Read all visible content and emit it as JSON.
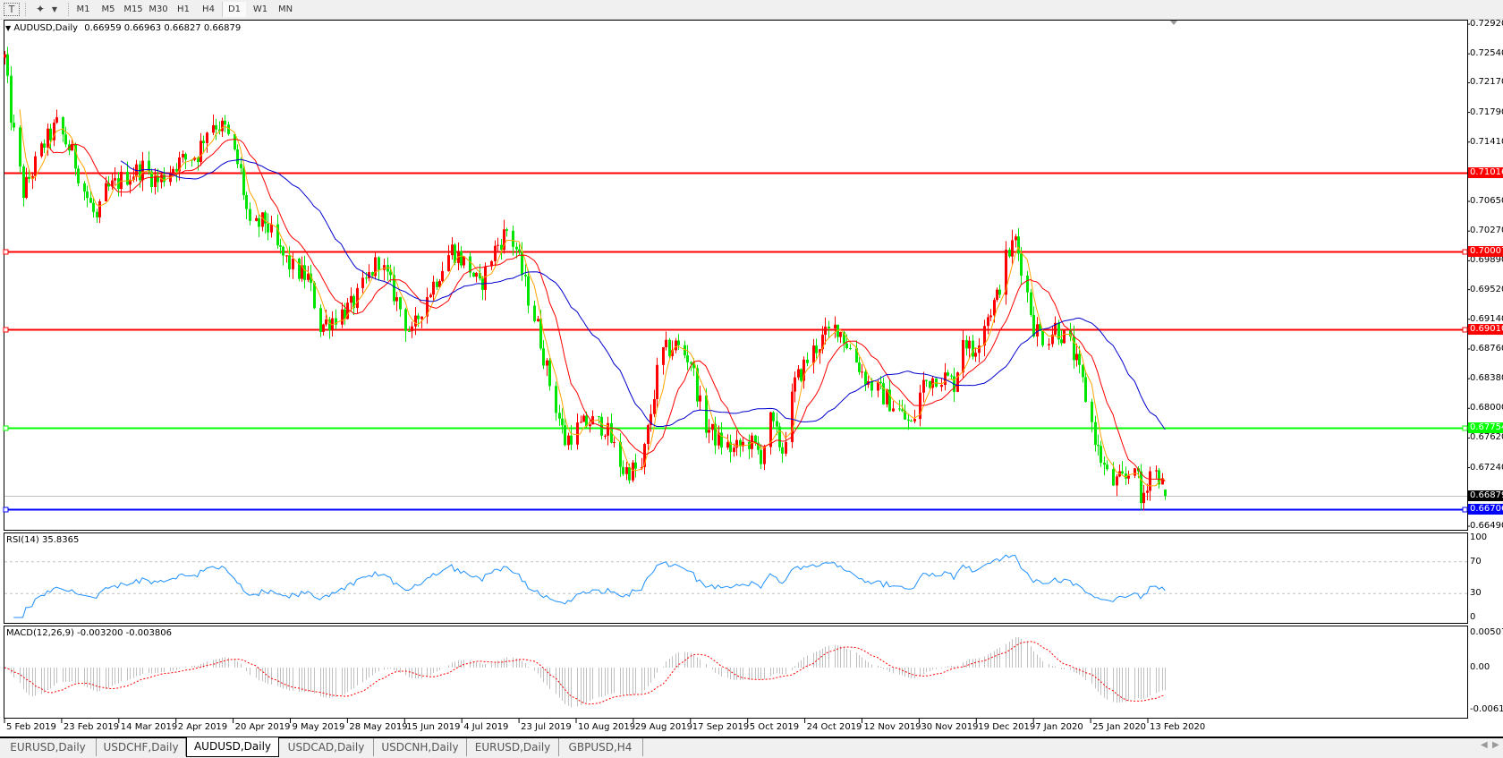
{
  "toolbar": {
    "icons": [
      "text-tool-icon",
      "cursor-shapes-icon"
    ],
    "timeframes": [
      "M1",
      "M5",
      "M15",
      "M30",
      "H1",
      "H4",
      "D1",
      "W1",
      "MN"
    ],
    "active_timeframe": "D1"
  },
  "main": {
    "title": "AUDUSD,Daily",
    "ohlc": "0.66959 0.66963 0.66827 0.66879"
  },
  "rsi": {
    "title": "RSI(14) 35.8365",
    "levels": [
      "100",
      "70",
      "30",
      "0"
    ],
    "line_color": "#1e90ff"
  },
  "macd": {
    "title": "MACD(12,26,9) -0.003200 -0.003806",
    "levels": [
      "0.005076",
      "0.00",
      "-0.00614"
    ]
  },
  "tabs": [
    "EURUSD,Daily",
    "USDCHF,Daily",
    "AUDUSD,Daily",
    "USDCAD,Daily",
    "USDCNH,Daily",
    "EURUSD,Daily",
    "GBPUSD,H4"
  ],
  "active_tab": "AUDUSD,Daily",
  "chart_data": {
    "type": "candlestick",
    "symbol": "AUDUSD",
    "timeframe": "Daily",
    "ylim": [
      0.6649,
      0.7292
    ],
    "y_ticks": [
      "0.72920",
      "0.72540",
      "0.72170",
      "0.71790",
      "0.71410",
      "0.70650",
      "0.70270",
      "0.69890",
      "0.69520",
      "0.69140",
      "0.68760",
      "0.68380",
      "0.68000",
      "0.67620",
      "0.67240",
      "0.66490"
    ],
    "x_ticks": [
      "5 Feb 2019",
      "23 Feb 2019",
      "14 Mar 2019",
      "2 Apr 2019",
      "20 Apr 2019",
      "9 May 2019",
      "28 May 2019",
      "15 Jun 2019",
      "4 Jul 2019",
      "23 Jul 2019",
      "10 Aug 2019",
      "29 Aug 2019",
      "17 Sep 2019",
      "5 Oct 2019",
      "24 Oct 2019",
      "12 Nov 2019",
      "30 Nov 2019",
      "19 Dec 2019",
      "7 Jan 2020",
      "25 Jan 2020",
      "13 Feb 2020"
    ],
    "bull_color": "#ff0000",
    "bear_color": "#00e600",
    "last_bar": {
      "open": 0.66959,
      "high": 0.66963,
      "low": 0.66827,
      "close": 0.66879
    },
    "horizontal_levels": [
      {
        "value": "0.71016",
        "color": "#ff0000"
      },
      {
        "value": "0.70007",
        "color": "#ff0000"
      },
      {
        "value": "0.69010",
        "color": "#ff0000"
      },
      {
        "value": "0.67754",
        "color": "#00ff00"
      },
      {
        "value": "0.66706",
        "color": "#0000ff"
      }
    ],
    "bid_line": {
      "value": "0.66879",
      "color": "#c0c0c0"
    },
    "moving_average_colors": [
      "#ffa500",
      "#ff0000",
      "#0000cd"
    ],
    "close_path": [
      [
        "2019-02-05",
        0.7249
      ],
      [
        "2019-02-07",
        0.7175
      ],
      [
        "2019-02-11",
        0.7077
      ],
      [
        "2019-02-18",
        0.7139
      ],
      [
        "2019-02-22",
        0.7163
      ],
      [
        "2019-02-27",
        0.7126
      ],
      [
        "2019-03-02",
        0.709
      ],
      [
        "2019-03-07",
        0.704
      ],
      [
        "2019-03-10",
        0.7077
      ],
      [
        "2019-03-16",
        0.7096
      ],
      [
        "2019-03-22",
        0.7108
      ],
      [
        "2019-03-27",
        0.709
      ],
      [
        "2019-04-02",
        0.7114
      ],
      [
        "2019-04-09",
        0.7126
      ],
      [
        "2019-04-13",
        0.7169
      ],
      [
        "2019-04-18",
        0.7157
      ],
      [
        "2019-04-23",
        0.7102
      ],
      [
        "2019-04-26",
        0.7028
      ],
      [
        "2019-05-01",
        0.704
      ],
      [
        "2019-05-05",
        0.7004
      ],
      [
        "2019-05-10",
        0.6979
      ],
      [
        "2019-05-15",
        0.6967
      ],
      [
        "2019-05-19",
        0.6905
      ],
      [
        "2019-05-24",
        0.6918
      ],
      [
        "2019-05-29",
        0.693
      ],
      [
        "2019-06-02",
        0.6954
      ],
      [
        "2019-06-07",
        0.6991
      ],
      [
        "2019-06-10",
        0.6967
      ],
      [
        "2019-06-15",
        0.6918
      ],
      [
        "2019-06-18",
        0.6893
      ],
      [
        "2019-06-21",
        0.693
      ],
      [
        "2019-06-26",
        0.6967
      ],
      [
        "2019-07-01",
        0.7004
      ],
      [
        "2019-07-04",
        0.6991
      ],
      [
        "2019-07-07",
        0.6979
      ],
      [
        "2019-07-10",
        0.6954
      ],
      [
        "2019-07-15",
        0.7004
      ],
      [
        "2019-07-19",
        0.7028
      ],
      [
        "2019-07-22",
        0.7004
      ],
      [
        "2019-07-26",
        0.6942
      ],
      [
        "2019-07-29",
        0.6905
      ],
      [
        "2019-08-02",
        0.6832
      ],
      [
        "2019-08-07",
        0.6758
      ],
      [
        "2019-08-10",
        0.6771
      ],
      [
        "2019-08-15",
        0.6783
      ],
      [
        "2019-08-20",
        0.6777
      ],
      [
        "2019-08-26",
        0.6721
      ],
      [
        "2019-09-01",
        0.6721
      ],
      [
        "2019-09-04",
        0.6795
      ],
      [
        "2019-09-07",
        0.6869
      ],
      [
        "2019-09-12",
        0.6881
      ],
      [
        "2019-09-17",
        0.6862
      ],
      [
        "2019-09-21",
        0.6783
      ],
      [
        "2019-09-26",
        0.6758
      ],
      [
        "2019-10-01",
        0.6746
      ],
      [
        "2019-10-06",
        0.6758
      ],
      [
        "2019-10-10",
        0.674
      ],
      [
        "2019-10-13",
        0.6783
      ],
      [
        "2019-10-17",
        0.6746
      ],
      [
        "2019-10-21",
        0.6832
      ],
      [
        "2019-10-26",
        0.6869
      ],
      [
        "2019-10-31",
        0.6893
      ],
      [
        "2019-11-04",
        0.6905
      ],
      [
        "2019-11-09",
        0.6869
      ],
      [
        "2019-11-14",
        0.6832
      ],
      [
        "2019-11-18",
        0.682
      ],
      [
        "2019-11-23",
        0.6801
      ],
      [
        "2019-11-28",
        0.6777
      ],
      [
        "2019-12-02",
        0.6832
      ],
      [
        "2019-12-07",
        0.6844
      ],
      [
        "2019-12-12",
        0.6832
      ],
      [
        "2019-12-15",
        0.6893
      ],
      [
        "2019-12-18",
        0.6869
      ],
      [
        "2019-12-21",
        0.6905
      ],
      [
        "2019-12-26",
        0.6942
      ],
      [
        "2019-12-29",
        0.6991
      ],
      [
        "2020-01-01",
        0.7016
      ],
      [
        "2020-01-04",
        0.6967
      ],
      [
        "2020-01-07",
        0.6905
      ],
      [
        "2020-01-11",
        0.6887
      ],
      [
        "2020-01-14",
        0.6905
      ],
      [
        "2020-01-19",
        0.6881
      ],
      [
        "2020-01-23",
        0.6832
      ],
      [
        "2020-01-28",
        0.6746
      ],
      [
        "2020-02-01",
        0.6703
      ],
      [
        "2020-02-06",
        0.6709
      ],
      [
        "2020-02-09",
        0.6734
      ],
      [
        "2020-02-11",
        0.6678
      ],
      [
        "2020-02-14",
        0.6721
      ],
      [
        "2020-02-17",
        0.6715
      ],
      [
        "2020-02-19",
        0.66879
      ]
    ]
  }
}
